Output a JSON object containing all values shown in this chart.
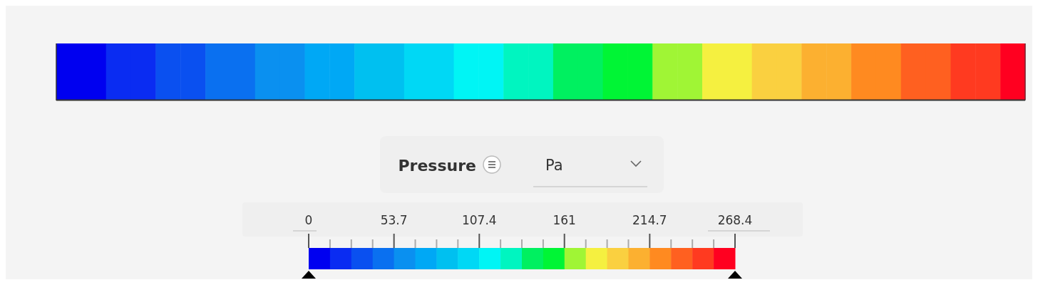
{
  "chart_data": {
    "type": "heatmap",
    "clabel": "Pressure",
    "annotations": [
      "Pa"
    ],
    "categories": [
      null,
      null,
      null,
      null,
      null,
      null,
      null,
      null,
      null,
      null,
      null,
      null,
      null,
      null,
      null,
      null,
      null,
      null,
      null,
      null,
      null,
      null,
      null,
      null,
      null,
      null,
      null,
      null,
      null,
      null,
      null,
      null,
      null,
      null,
      null,
      null,
      null,
      null,
      null
    ],
    "y_categories": [
      null
    ],
    "cells": [
      [
        7,
        7,
        20,
        20,
        34,
        34,
        47,
        47,
        60,
        60,
        74,
        74,
        87,
        87,
        101,
        101,
        114,
        114,
        128,
        128,
        141,
        141,
        154,
        154,
        168,
        168,
        181,
        181,
        195,
        195,
        208,
        208,
        221,
        221,
        235,
        235,
        248,
        248,
        262
      ]
    ],
    "colors": [
      "#0000f0",
      "#0a2cf2",
      "#0a50f0",
      "#0a70f0",
      "#0a90f0",
      "#00a8f5",
      "#00c0f0",
      "#00d8f5",
      "#00f5f5",
      "#00f5c0",
      "#00f060",
      "#00f535",
      "#a0f535",
      "#f5f040",
      "#fad040",
      "#fcb030",
      "#ff8a20",
      "#ff6020",
      "#ff3a20",
      "#ff0020"
    ],
    "clim": [
      0,
      268.4
    ],
    "cticks": [
      0,
      {
        "value": 13.42,
        "label": null
      },
      {
        "value": 26.84,
        "label": null
      },
      {
        "value": 40.26,
        "label": null
      },
      53.7,
      {
        "value": 67.1,
        "label": null
      },
      {
        "value": 80.52,
        "label": null
      },
      {
        "value": 93.94,
        "label": null
      },
      107.4,
      {
        "value": 120.78,
        "label": null
      },
      {
        "value": 134.2,
        "label": null
      },
      {
        "value": 147.62,
        "label": null
      },
      161,
      {
        "value": 174.46,
        "label": null
      },
      {
        "value": 187.88,
        "label": null
      },
      {
        "value": 201.3,
        "label": null
      },
      214.7,
      {
        "value": 228.14,
        "label": null
      },
      {
        "value": 241.56,
        "label": null
      },
      {
        "value": 254.98,
        "label": null
      },
      268.4
    ]
  }
}
